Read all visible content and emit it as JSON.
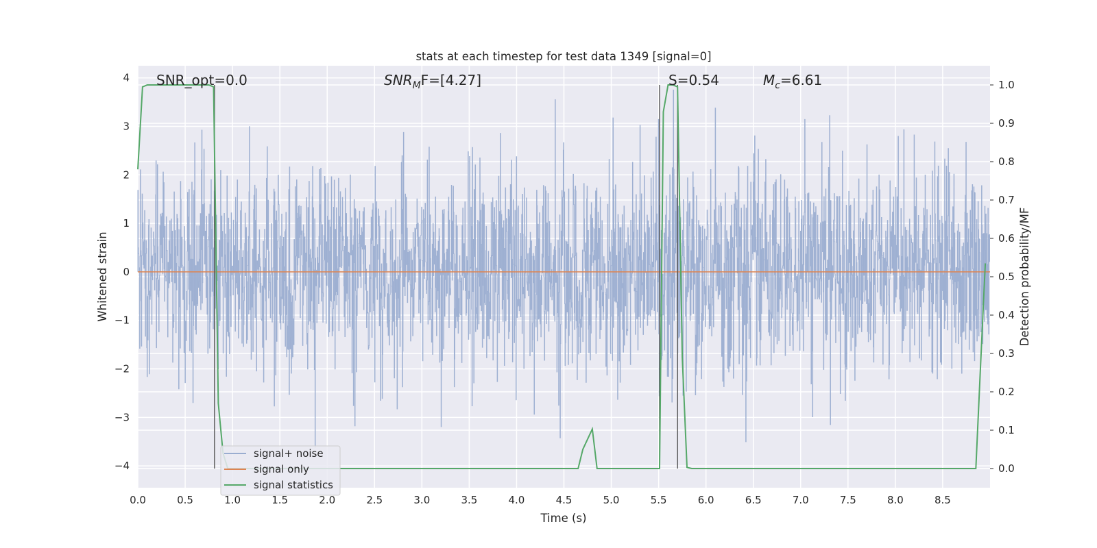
{
  "chart_data": {
    "type": "line",
    "title": "stats at each timestep for test data 1349 [signal=0]",
    "xlabel": "Time (s)",
    "ylabel": "Whitened strain",
    "ylabel_right": "Detection probability/MF",
    "xlim": [
      0.0,
      9.0
    ],
    "ylim": [
      -4.45,
      4.25
    ],
    "ylim_right": [
      -0.05,
      1.05
    ],
    "x_ticks": [
      "0.0",
      "0.5",
      "1.0",
      "1.5",
      "2.0",
      "2.5",
      "3.0",
      "3.5",
      "4.0",
      "4.5",
      "5.0",
      "5.5",
      "6.0",
      "6.5",
      "7.0",
      "7.5",
      "8.0",
      "8.5"
    ],
    "y_ticks": [
      "4",
      "3",
      "2",
      "1",
      "0",
      "−1",
      "−2",
      "−3",
      "−4"
    ],
    "y_ticks_right": [
      "1.0",
      "0.9",
      "0.8",
      "0.7",
      "0.6",
      "0.5",
      "0.4",
      "0.3",
      "0.2",
      "0.1",
      "0.0"
    ],
    "grid": true,
    "legend_position": "lower-left",
    "annotations": {
      "snr_opt": "SNR_opt=0.0",
      "snr_mf_prefix": "SNR",
      "snr_mf_sub": "M",
      "snr_mf_suffix": "F=[4.27]",
      "s_label": "S=0.54",
      "mc_prefix": "M",
      "mc_sub": "c",
      "mc_suffix": "=6.61"
    },
    "vertical_lines_x": [
      0.81,
      5.51,
      5.7
    ],
    "series": [
      {
        "name": "signal+ noise",
        "color": "#9aadd0",
        "description_values": "gaussian-like whitened noise, mostly within ±1.7, peaks near ±3.7",
        "duration_s": 9.0
      },
      {
        "name": "signal only",
        "color": "#dd8452",
        "values_constant": 0.0
      },
      {
        "name": "signal statistics",
        "color": "#55a868",
        "axis": "right",
        "x": [
          0.0,
          0.05,
          0.1,
          0.15,
          0.2,
          0.3,
          0.4,
          0.5,
          0.6,
          0.7,
          0.75,
          0.8,
          0.85,
          0.9,
          0.95,
          1.0,
          1.5,
          2.0,
          3.0,
          4.0,
          4.65,
          4.7,
          4.8,
          4.85,
          4.9,
          5.0,
          5.5,
          5.51,
          5.55,
          5.6,
          5.65,
          5.7,
          5.75,
          5.8,
          5.85,
          6.0,
          7.0,
          8.0,
          8.85,
          8.9,
          8.95
        ],
        "y": [
          0.78,
          0.995,
          1.0,
          1.0,
          1.0,
          1.0,
          1.0,
          1.0,
          1.0,
          1.0,
          1.0,
          0.995,
          0.17,
          0.04,
          0.0,
          0.0,
          0.0,
          0.0,
          0.0,
          0.0,
          0.0,
          0.05,
          0.103,
          0.0,
          0.0,
          0.0,
          0.0,
          0.0,
          0.93,
          1.0,
          1.0,
          0.995,
          0.29,
          0.003,
          0.0,
          0.0,
          0.0,
          0.0,
          0.0,
          0.27,
          0.535
        ]
      }
    ]
  }
}
